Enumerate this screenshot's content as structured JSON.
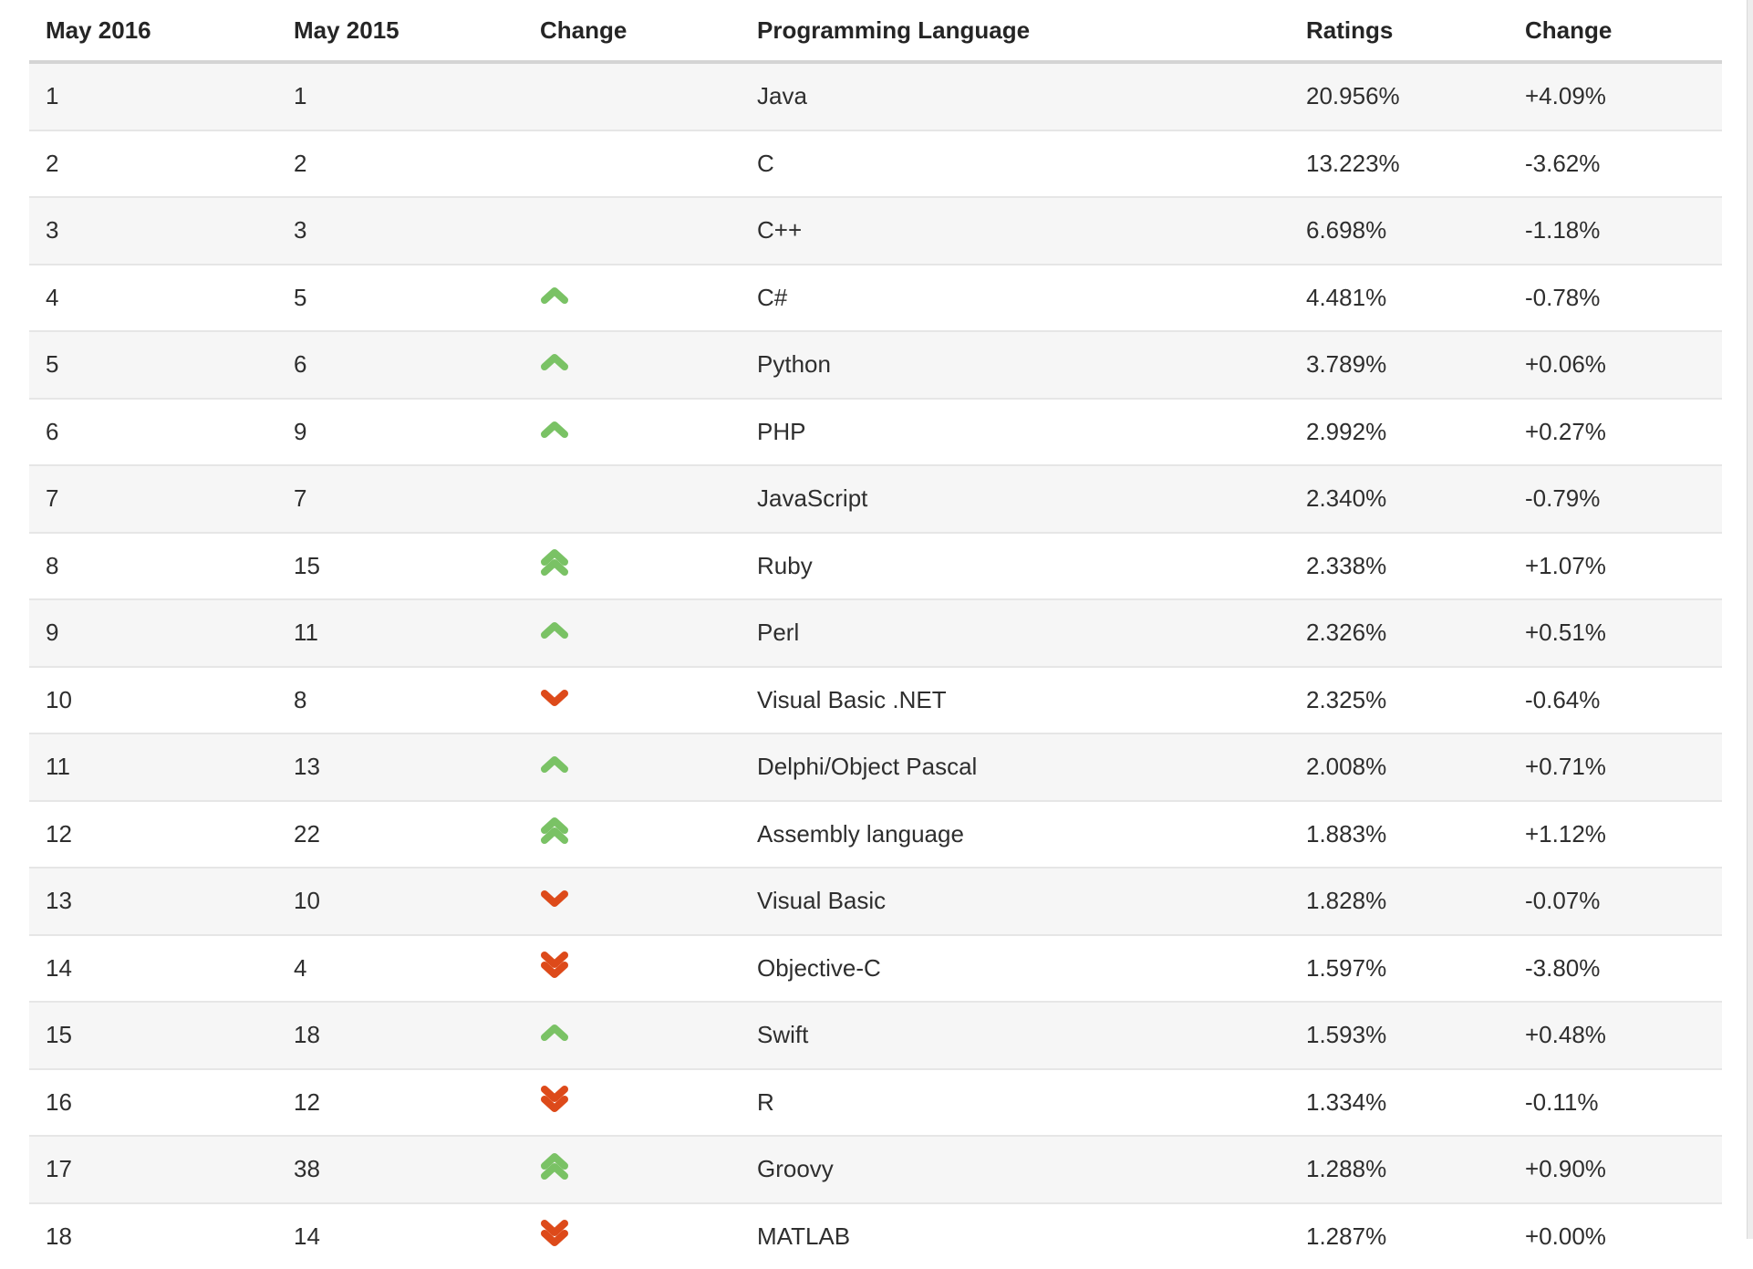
{
  "chart_data": {
    "type": "table",
    "columns": [
      "May 2016",
      "May 2015",
      "Change",
      "Programming Language",
      "Ratings",
      "Change"
    ],
    "rows": [
      {
        "may2016": "1",
        "may2015": "1",
        "movement": "none",
        "language": "Java",
        "ratings": "20.956%",
        "change": "+4.09%"
      },
      {
        "may2016": "2",
        "may2015": "2",
        "movement": "none",
        "language": "C",
        "ratings": "13.223%",
        "change": "-3.62%"
      },
      {
        "may2016": "3",
        "may2015": "3",
        "movement": "none",
        "language": "C++",
        "ratings": "6.698%",
        "change": "-1.18%"
      },
      {
        "may2016": "4",
        "may2015": "5",
        "movement": "up",
        "language": "C#",
        "ratings": "4.481%",
        "change": "-0.78%"
      },
      {
        "may2016": "5",
        "may2015": "6",
        "movement": "up",
        "language": "Python",
        "ratings": "3.789%",
        "change": "+0.06%"
      },
      {
        "may2016": "6",
        "may2015": "9",
        "movement": "up",
        "language": "PHP",
        "ratings": "2.992%",
        "change": "+0.27%"
      },
      {
        "may2016": "7",
        "may2015": "7",
        "movement": "none",
        "language": "JavaScript",
        "ratings": "2.340%",
        "change": "-0.79%"
      },
      {
        "may2016": "8",
        "may2015": "15",
        "movement": "double-up",
        "language": "Ruby",
        "ratings": "2.338%",
        "change": "+1.07%"
      },
      {
        "may2016": "9",
        "may2015": "11",
        "movement": "up",
        "language": "Perl",
        "ratings": "2.326%",
        "change": "+0.51%"
      },
      {
        "may2016": "10",
        "may2015": "8",
        "movement": "down",
        "language": "Visual Basic .NET",
        "ratings": "2.325%",
        "change": "-0.64%"
      },
      {
        "may2016": "11",
        "may2015": "13",
        "movement": "up",
        "language": "Delphi/Object Pascal",
        "ratings": "2.008%",
        "change": "+0.71%"
      },
      {
        "may2016": "12",
        "may2015": "22",
        "movement": "double-up",
        "language": "Assembly language",
        "ratings": "1.883%",
        "change": "+1.12%"
      },
      {
        "may2016": "13",
        "may2015": "10",
        "movement": "down",
        "language": "Visual Basic",
        "ratings": "1.828%",
        "change": "-0.07%"
      },
      {
        "may2016": "14",
        "may2015": "4",
        "movement": "double-down",
        "language": "Objective-C",
        "ratings": "1.597%",
        "change": "-3.80%"
      },
      {
        "may2016": "15",
        "may2015": "18",
        "movement": "up",
        "language": "Swift",
        "ratings": "1.593%",
        "change": "+0.48%"
      },
      {
        "may2016": "16",
        "may2015": "12",
        "movement": "double-down",
        "language": "R",
        "ratings": "1.334%",
        "change": "-0.11%"
      },
      {
        "may2016": "17",
        "may2015": "38",
        "movement": "double-up",
        "language": "Groovy",
        "ratings": "1.288%",
        "change": "+0.90%"
      },
      {
        "may2016": "18",
        "may2015": "14",
        "movement": "double-down",
        "language": "MATLAB",
        "ratings": "1.287%",
        "change": "+0.00%"
      }
    ]
  },
  "colors": {
    "up_arrow": "#7ac265",
    "down_arrow": "#dd4a1a",
    "row_alt_background": "#f6f6f6",
    "header_border": "#d4d4d4",
    "row_border": "#e6e6e6",
    "text": "#2e2e2e"
  }
}
